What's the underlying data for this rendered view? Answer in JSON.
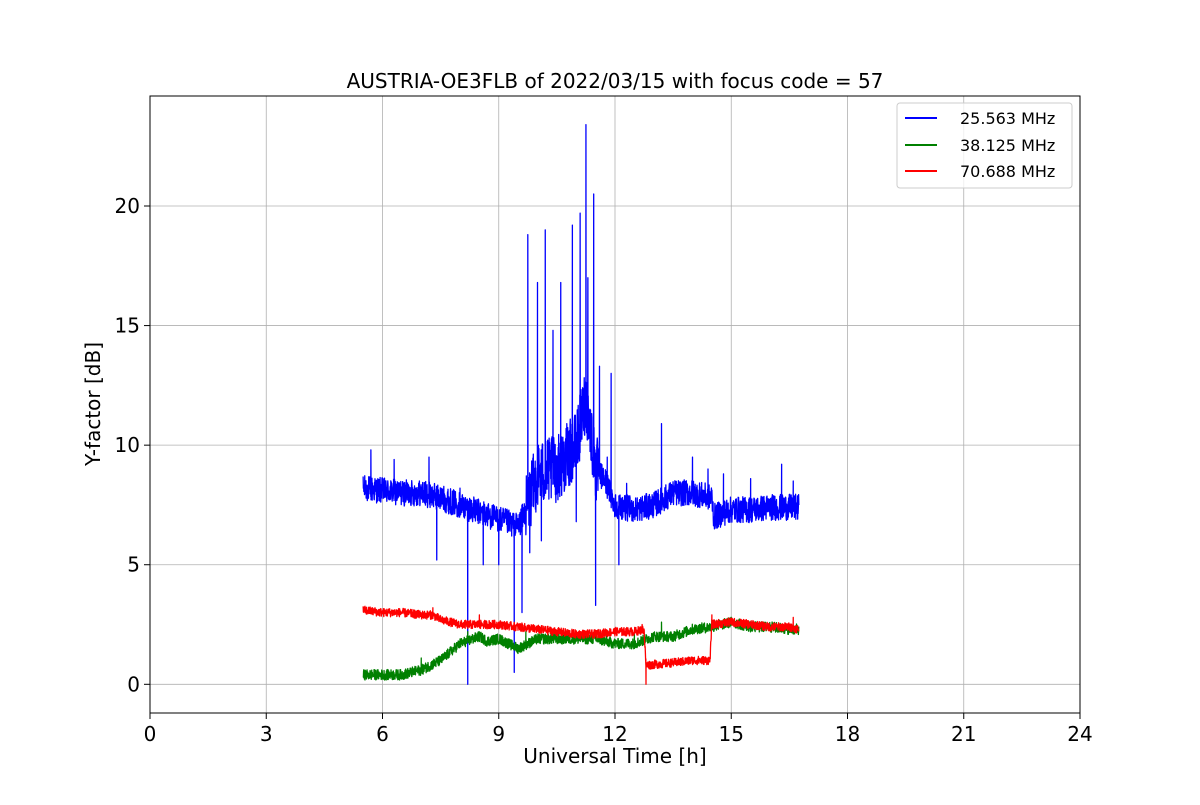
{
  "chart_data": {
    "type": "line",
    "title": "AUSTRIA-OE3FLB of 2022/03/15 with focus code = 57",
    "xlabel": "Universal Time [h]",
    "ylabel": "Y-factor [dB]",
    "xlim": [
      0,
      24
    ],
    "ylim": [
      -1.2,
      24.6
    ],
    "xticks": [
      0,
      3,
      6,
      9,
      12,
      15,
      18,
      21,
      24
    ],
    "yticks": [
      0,
      5,
      10,
      15,
      20
    ],
    "grid": true,
    "legend_position": "top-right",
    "series": [
      {
        "name": "25.563 MHz",
        "color": "#0000ff",
        "style": "noisy",
        "points": [
          [
            5.5,
            8.2
          ],
          [
            6.0,
            8.1
          ],
          [
            6.5,
            8.0
          ],
          [
            7.0,
            8.0
          ],
          [
            7.5,
            7.8
          ],
          [
            8.0,
            7.5
          ],
          [
            8.5,
            7.2
          ],
          [
            9.0,
            6.9
          ],
          [
            9.5,
            6.6
          ],
          [
            9.75,
            7.5
          ],
          [
            10.0,
            8.8
          ],
          [
            10.5,
            9.0
          ],
          [
            11.0,
            10.0
          ],
          [
            11.25,
            12.0
          ],
          [
            11.5,
            9.0
          ],
          [
            11.75,
            8.5
          ],
          [
            12.0,
            7.5
          ],
          [
            12.5,
            7.3
          ],
          [
            13.0,
            7.5
          ],
          [
            13.5,
            8.0
          ],
          [
            14.0,
            8.0
          ],
          [
            14.5,
            7.8
          ],
          [
            14.55,
            7.0
          ],
          [
            15.0,
            7.3
          ],
          [
            15.5,
            7.3
          ],
          [
            16.0,
            7.4
          ],
          [
            16.5,
            7.4
          ],
          [
            16.75,
            7.4
          ]
        ],
        "spikes": [
          [
            5.7,
            9.8
          ],
          [
            6.3,
            9.4
          ],
          [
            7.2,
            9.5
          ],
          [
            7.4,
            5.2
          ],
          [
            8.0,
            8.2
          ],
          [
            8.2,
            0.0
          ],
          [
            8.6,
            5.0
          ],
          [
            9.0,
            5.0
          ],
          [
            9.4,
            0.5
          ],
          [
            9.6,
            3.0
          ],
          [
            9.75,
            18.8
          ],
          [
            9.8,
            5.5
          ],
          [
            10.0,
            16.8
          ],
          [
            10.1,
            6.0
          ],
          [
            10.2,
            19.0
          ],
          [
            10.3,
            9.5
          ],
          [
            10.4,
            14.8
          ],
          [
            10.6,
            16.8
          ],
          [
            10.9,
            19.2
          ],
          [
            11.0,
            6.8
          ],
          [
            11.1,
            19.7
          ],
          [
            11.25,
            23.4
          ],
          [
            11.3,
            17.0
          ],
          [
            11.45,
            20.5
          ],
          [
            11.5,
            3.3
          ],
          [
            11.6,
            13.3
          ],
          [
            11.8,
            9.5
          ],
          [
            11.9,
            13.0
          ],
          [
            12.1,
            5.0
          ],
          [
            12.3,
            8.4
          ],
          [
            13.2,
            10.9
          ],
          [
            14.0,
            9.5
          ],
          [
            14.4,
            9.0
          ],
          [
            14.8,
            8.8
          ],
          [
            15.5,
            8.6
          ],
          [
            16.3,
            9.2
          ],
          [
            16.6,
            8.5
          ]
        ]
      },
      {
        "name": "38.125 MHz",
        "color": "#008000",
        "style": "noisy",
        "points": [
          [
            5.5,
            0.4
          ],
          [
            6.0,
            0.4
          ],
          [
            6.5,
            0.4
          ],
          [
            7.0,
            0.6
          ],
          [
            7.5,
            1.0
          ],
          [
            8.0,
            1.7
          ],
          [
            8.5,
            2.0
          ],
          [
            8.7,
            1.8
          ],
          [
            9.0,
            1.9
          ],
          [
            9.5,
            1.5
          ],
          [
            10.0,
            1.9
          ],
          [
            10.5,
            1.9
          ],
          [
            11.0,
            1.9
          ],
          [
            11.5,
            1.9
          ],
          [
            12.0,
            1.7
          ],
          [
            12.5,
            1.7
          ],
          [
            13.0,
            2.0
          ],
          [
            13.5,
            2.0
          ],
          [
            14.0,
            2.3
          ],
          [
            14.5,
            2.4
          ],
          [
            15.0,
            2.6
          ],
          [
            15.5,
            2.4
          ],
          [
            16.0,
            2.4
          ],
          [
            16.5,
            2.3
          ],
          [
            16.75,
            2.3
          ]
        ],
        "spikes": [
          [
            7.0,
            1.1
          ],
          [
            8.2,
            2.2
          ],
          [
            9.7,
            2.2
          ],
          [
            12.5,
            2.1
          ],
          [
            13.2,
            2.6
          ],
          [
            14.5,
            2.7
          ]
        ]
      },
      {
        "name": "70.688 MHz",
        "color": "#ff0000",
        "style": "noisy",
        "points": [
          [
            5.5,
            3.1
          ],
          [
            6.0,
            3.0
          ],
          [
            6.5,
            3.0
          ],
          [
            7.0,
            2.9
          ],
          [
            7.3,
            2.9
          ],
          [
            7.5,
            2.7
          ],
          [
            8.0,
            2.5
          ],
          [
            8.5,
            2.5
          ],
          [
            9.0,
            2.5
          ],
          [
            9.5,
            2.4
          ],
          [
            10.0,
            2.3
          ],
          [
            10.5,
            2.2
          ],
          [
            11.0,
            2.1
          ],
          [
            11.5,
            2.1
          ],
          [
            12.0,
            2.2
          ],
          [
            12.5,
            2.2
          ],
          [
            12.75,
            2.3
          ],
          [
            12.8,
            0.8
          ],
          [
            13.5,
            0.9
          ],
          [
            14.0,
            1.0
          ],
          [
            14.45,
            1.0
          ],
          [
            14.5,
            2.5
          ],
          [
            15.0,
            2.6
          ],
          [
            15.5,
            2.5
          ],
          [
            16.0,
            2.4
          ],
          [
            16.5,
            2.4
          ],
          [
            16.75,
            2.3
          ]
        ],
        "spikes": [
          [
            7.3,
            3.2
          ],
          [
            8.5,
            2.9
          ],
          [
            12.7,
            2.5
          ],
          [
            12.8,
            0.0
          ],
          [
            14.5,
            2.9
          ],
          [
            16.6,
            2.8
          ]
        ]
      }
    ]
  }
}
